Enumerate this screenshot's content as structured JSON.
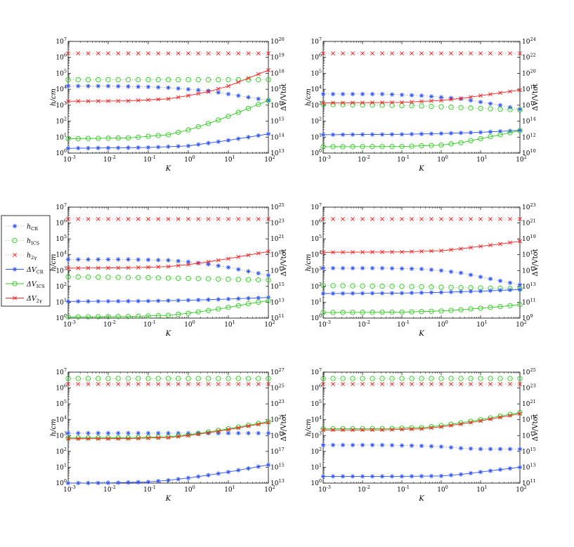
{
  "chart_data": {
    "type": "line",
    "xlabel": "K",
    "ylabel_left": "h/cm",
    "ylabel_right": "ΔV/Vtot",
    "x_scale": "log",
    "y_scale": "log",
    "x_tick_exponents": [
      -3,
      -2,
      -1,
      0,
      1,
      2
    ],
    "xlim": [
      0.001,
      100
    ],
    "ylim_left": [
      1,
      10000000
    ],
    "legend": {
      "placement": "left-outside",
      "entries": [
        {
          "sym": "h",
          "sub": "CR",
          "color": "#2b50ff",
          "marker": "star",
          "line": "dotted"
        },
        {
          "sym": "h",
          "sub": "ICS",
          "color": "#2dcc1e",
          "marker": "circle",
          "line": "dotted"
        },
        {
          "sym": "h",
          "sub": "2γ",
          "color": "#ff1e1e",
          "marker": "x",
          "line": "dotted"
        },
        {
          "sym": "ΔV",
          "sub": "CR",
          "color": "#2b50ff",
          "marker": "star",
          "line": "solid"
        },
        {
          "sym": "ΔV",
          "sub": "ICS",
          "color": "#2dcc1e",
          "marker": "circle",
          "line": "solid"
        },
        {
          "sym": "ΔV",
          "sub": "2γ",
          "color": "#ff1e1e",
          "marker": "x",
          "line": "solid"
        }
      ]
    },
    "panels": [
      {
        "right_ticks": [
          13,
          14,
          15,
          16,
          17,
          18,
          19,
          20
        ],
        "h_CR": [
          [
            -3,
            4.2
          ],
          [
            -2,
            4.2
          ],
          [
            -1,
            4.15
          ],
          [
            -0.5,
            4.1
          ],
          [
            0,
            4.0
          ],
          [
            0.5,
            3.9
          ],
          [
            1,
            3.7
          ],
          [
            1.5,
            3.5
          ],
          [
            2,
            3.3
          ]
        ],
        "h_ICS": [
          [
            -3,
            4.6
          ],
          [
            -1,
            4.6
          ],
          [
            0,
            4.6
          ],
          [
            1,
            4.6
          ],
          [
            2,
            4.6
          ]
        ],
        "h_2g": [
          [
            -3,
            6.25
          ],
          [
            2,
            6.25
          ]
        ],
        "dV_CR": [
          [
            -3,
            13.3
          ],
          [
            -1,
            13.35
          ],
          [
            0,
            13.45
          ],
          [
            1,
            13.8
          ],
          [
            2,
            14.2
          ]
        ],
        "dV_ICS": [
          [
            -3,
            13.9
          ],
          [
            -1.5,
            13.95
          ],
          [
            -0.5,
            14.15
          ],
          [
            0,
            14.45
          ],
          [
            0.5,
            14.85
          ],
          [
            1,
            15.3
          ],
          [
            1.5,
            15.8
          ],
          [
            2,
            16.3
          ]
        ],
        "dV_2g": [
          [
            -3,
            16.25
          ],
          [
            -1.5,
            16.27
          ],
          [
            -0.5,
            16.4
          ],
          [
            0,
            16.6
          ],
          [
            0.5,
            16.85
          ],
          [
            1,
            17.2
          ],
          [
            1.5,
            17.7
          ],
          [
            2,
            18.2
          ]
        ]
      },
      {
        "right_ticks": [
          10,
          12,
          14,
          16,
          18,
          20,
          22,
          24
        ],
        "h_CR": [
          [
            -3,
            3.7
          ],
          [
            -1.5,
            3.7
          ],
          [
            -0.5,
            3.6
          ],
          [
            0,
            3.5
          ],
          [
            0.5,
            3.4
          ],
          [
            1,
            3.2
          ],
          [
            1.5,
            3.0
          ],
          [
            2,
            2.75
          ]
        ],
        "h_ICS": [
          [
            -3,
            3.05
          ],
          [
            -1.5,
            3.0
          ],
          [
            -0.5,
            2.95
          ],
          [
            0,
            2.9
          ],
          [
            1,
            2.8
          ],
          [
            2,
            2.7
          ]
        ],
        "h_2g": [
          [
            -3,
            6.25
          ],
          [
            2,
            6.25
          ]
        ],
        "dV_CR": [
          [
            -3,
            12.3
          ],
          [
            -1,
            12.35
          ],
          [
            0,
            12.45
          ],
          [
            1,
            12.6
          ],
          [
            2,
            12.85
          ]
        ],
        "dV_ICS": [
          [
            -3,
            10.8
          ],
          [
            -1,
            10.82
          ],
          [
            0,
            11.0
          ],
          [
            0.5,
            11.3
          ],
          [
            1,
            11.8
          ],
          [
            1.5,
            12.3
          ],
          [
            2,
            12.8
          ]
        ],
        "dV_2g": [
          [
            -3,
            16.3
          ],
          [
            -1,
            16.35
          ],
          [
            0,
            16.6
          ],
          [
            0.5,
            16.85
          ],
          [
            1,
            17.2
          ],
          [
            1.5,
            17.55
          ],
          [
            2,
            17.9
          ]
        ]
      },
      {
        "right_ticks": [
          11,
          13,
          15,
          17,
          19,
          21,
          23,
          25
        ],
        "h_CR": [
          [
            -3,
            3.7
          ],
          [
            -1.5,
            3.7
          ],
          [
            -0.5,
            3.65
          ],
          [
            0,
            3.55
          ],
          [
            0.5,
            3.4
          ],
          [
            1,
            3.2
          ],
          [
            1.5,
            2.95
          ],
          [
            2,
            2.7
          ]
        ],
        "h_ICS": [
          [
            -3,
            2.6
          ],
          [
            -1,
            2.55
          ],
          [
            0,
            2.5
          ],
          [
            1,
            2.45
          ],
          [
            2,
            2.4
          ]
        ],
        "h_2g": [
          [
            -3,
            6.25
          ],
          [
            2,
            6.25
          ]
        ],
        "dV_CR": [
          [
            -3,
            13.1
          ],
          [
            -1,
            13.15
          ],
          [
            0,
            13.25
          ],
          [
            1,
            13.4
          ],
          [
            2,
            13.6
          ]
        ],
        "dV_ICS": [
          [
            -3,
            11.15
          ],
          [
            -1.5,
            11.2
          ],
          [
            -0.5,
            11.35
          ],
          [
            0,
            11.6
          ],
          [
            0.5,
            11.95
          ],
          [
            1,
            12.35
          ],
          [
            1.5,
            12.8
          ],
          [
            2,
            13.2
          ]
        ],
        "dV_2g": [
          [
            -3,
            17.3
          ],
          [
            -1.5,
            17.35
          ],
          [
            -0.5,
            17.5
          ],
          [
            0,
            17.75
          ],
          [
            0.5,
            18.1
          ],
          [
            1,
            18.5
          ],
          [
            1.5,
            18.95
          ],
          [
            2,
            19.4
          ]
        ]
      },
      {
        "right_ticks": [
          9,
          11,
          13,
          15,
          17,
          19,
          21,
          23
        ],
        "h_CR": [
          [
            -3,
            3.15
          ],
          [
            -1.5,
            3.15
          ],
          [
            -0.5,
            3.1
          ],
          [
            0,
            3.0
          ],
          [
            0.5,
            2.85
          ],
          [
            1,
            2.6
          ],
          [
            1.5,
            2.35
          ],
          [
            2,
            2.1
          ]
        ],
        "h_ICS": [
          [
            -3,
            2.05
          ],
          [
            -1,
            2.0
          ],
          [
            0,
            1.95
          ],
          [
            1,
            1.9
          ],
          [
            2,
            1.85
          ]
        ],
        "h_2g": [
          [
            -3,
            6.25
          ],
          [
            2,
            6.25
          ]
        ],
        "dV_CR": [
          [
            -3,
            12.1
          ],
          [
            -1,
            12.15
          ],
          [
            0,
            12.25
          ],
          [
            1,
            12.4
          ],
          [
            2,
            12.6
          ]
        ],
        "dV_ICS": [
          [
            -3,
            9.7
          ],
          [
            -1,
            9.75
          ],
          [
            0,
            9.9
          ],
          [
            0.5,
            10.05
          ],
          [
            1,
            10.25
          ],
          [
            1.5,
            10.45
          ],
          [
            2,
            10.7
          ]
        ],
        "dV_2g": [
          [
            -3,
            17.3
          ],
          [
            -1,
            17.35
          ],
          [
            0,
            17.5
          ],
          [
            0.5,
            17.75
          ],
          [
            1,
            18.05
          ],
          [
            1.5,
            18.35
          ],
          [
            2,
            18.7
          ]
        ]
      },
      {
        "right_ticks": [
          13,
          15,
          17,
          19,
          21,
          23,
          25,
          27
        ],
        "h_CR": [
          [
            -3,
            3.15
          ],
          [
            -1,
            3.15
          ],
          [
            0,
            3.15
          ],
          [
            1,
            3.15
          ],
          [
            2,
            3.15
          ]
        ],
        "h_ICS": [
          [
            -3,
            6.6
          ],
          [
            2,
            6.6
          ]
        ],
        "h_2g": [
          [
            -3,
            6.25
          ],
          [
            2,
            6.25
          ]
        ],
        "dV_CR": [
          [
            -3,
            13.0
          ],
          [
            -2,
            13.02
          ],
          [
            -1,
            13.15
          ],
          [
            -0.5,
            13.35
          ],
          [
            0,
            13.65
          ],
          [
            0.5,
            14.0
          ],
          [
            1,
            14.4
          ],
          [
            1.5,
            14.85
          ],
          [
            2,
            15.3
          ]
        ],
        "dV_ICS": [
          [
            -3,
            18.7
          ],
          [
            -1.5,
            18.72
          ],
          [
            -0.5,
            18.85
          ],
          [
            0,
            19.1
          ],
          [
            0.5,
            19.45
          ],
          [
            1,
            19.85
          ],
          [
            1.5,
            20.3
          ],
          [
            2,
            20.75
          ]
        ],
        "dV_2g": [
          [
            -3,
            18.6
          ],
          [
            -1.5,
            18.62
          ],
          [
            -0.5,
            18.75
          ],
          [
            0,
            19.0
          ],
          [
            0.5,
            19.35
          ],
          [
            1,
            19.75
          ],
          [
            1.5,
            20.2
          ],
          [
            2,
            20.65
          ]
        ]
      },
      {
        "right_ticks": [
          11,
          13,
          15,
          17,
          19,
          21,
          23,
          25
        ],
        "h_CR": [
          [
            -3,
            2.4
          ],
          [
            -1.5,
            2.4
          ],
          [
            -0.5,
            2.35
          ],
          [
            0,
            2.3
          ],
          [
            0.5,
            2.2
          ],
          [
            1,
            2.15
          ],
          [
            2,
            2.15
          ]
        ],
        "h_ICS": [
          [
            -3,
            6.6
          ],
          [
            2,
            6.6
          ]
        ],
        "h_2g": [
          [
            -3,
            6.25
          ],
          [
            2,
            6.25
          ]
        ],
        "dV_CR": [
          [
            -3,
            11.85
          ],
          [
            -1,
            11.85
          ],
          [
            0,
            11.9
          ],
          [
            0.5,
            12.1
          ],
          [
            1,
            12.4
          ],
          [
            1.5,
            12.7
          ],
          [
            2,
            13.0
          ]
        ],
        "dV_ICS": [
          [
            -3,
            17.85
          ],
          [
            -1.5,
            17.87
          ],
          [
            -0.5,
            18.0
          ],
          [
            0,
            18.25
          ],
          [
            0.5,
            18.6
          ],
          [
            1,
            19.0
          ],
          [
            1.5,
            19.45
          ],
          [
            2,
            19.9
          ]
        ],
        "dV_2g": [
          [
            -3,
            17.7
          ],
          [
            -1.5,
            17.72
          ],
          [
            -0.5,
            17.85
          ],
          [
            0,
            18.1
          ],
          [
            0.5,
            18.45
          ],
          [
            1,
            18.85
          ],
          [
            1.5,
            19.3
          ],
          [
            2,
            19.75
          ]
        ]
      }
    ]
  }
}
